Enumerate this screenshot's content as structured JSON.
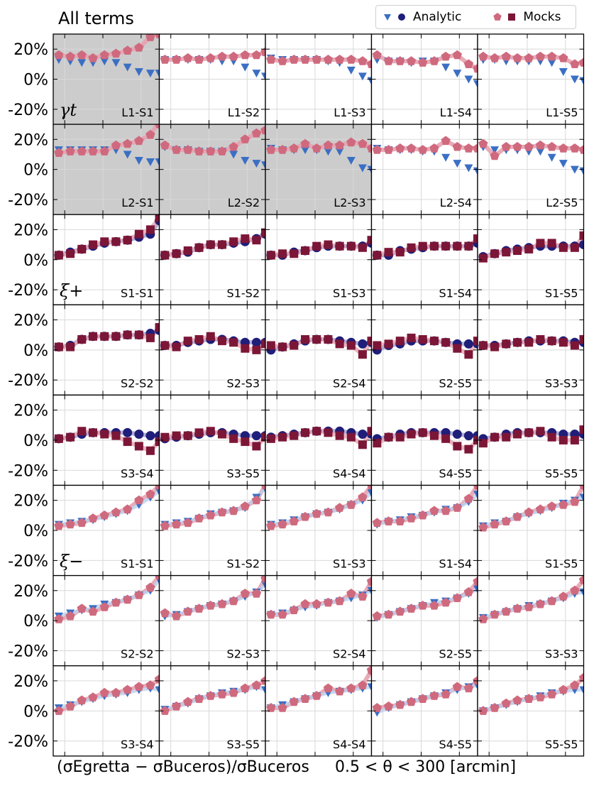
{
  "title": "All terms",
  "legend": {
    "analytic": "Analytic",
    "mocks": "Mocks"
  },
  "captions": {
    "left": "(σEgretta − σBuceros)/σBuceros",
    "right": "0.5 < θ < 300 [arcmin]"
  },
  "colors": {
    "analytic_tri": "#3a6fc4",
    "analytic_dot": "#1f1e7a",
    "mocks_pent": "#cf6a7e",
    "mocks_sq": "#7c1637",
    "band": "#e7a2b0",
    "shade": "#cccccc"
  },
  "row_labels": [
    "γt",
    "",
    "ξ+",
    "",
    "",
    "ξ−",
    "",
    ""
  ],
  "y_ticks": [
    "20%",
    "0%",
    "-20%"
  ],
  "chart_data": {
    "type": "scatter",
    "x": [
      0.7,
      1.4,
      2.8,
      5.5,
      11,
      22,
      44,
      88,
      175,
      300
    ],
    "xlabel": "0.5 < θ < 300 [arcmin]",
    "ylabel": "(σEgretta − σBuceros)/σBuceros",
    "ylim": [
      -30,
      30
    ],
    "panels": [
      {
        "label": "L1-S1",
        "kind": "ggl",
        "shaded": true,
        "analytic": [
          13,
          12,
          11,
          11,
          12,
          11,
          8,
          5,
          4,
          4
        ],
        "mocks": [
          16,
          15,
          16,
          14,
          16,
          17,
          19,
          21,
          28,
          32
        ]
      },
      {
        "label": "L1-S2",
        "kind": "ggl",
        "shaded": false,
        "analytic": [
          13,
          13,
          13,
          13,
          13,
          12,
          12,
          8,
          4,
          2
        ],
        "mocks": [
          13,
          13,
          14,
          13,
          14,
          15,
          15,
          16,
          16,
          18
        ]
      },
      {
        "label": "L1-S3",
        "kind": "ggl",
        "shaded": false,
        "analytic": [
          14,
          13,
          13,
          13,
          13,
          12,
          11,
          6,
          2,
          -1
        ],
        "mocks": [
          13,
          12,
          13,
          13,
          13,
          13,
          13,
          13,
          12,
          10
        ]
      },
      {
        "label": "L1-S4",
        "kind": "ggl",
        "shaded": false,
        "analytic": [
          13,
          12,
          12,
          11,
          12,
          12,
          8,
          4,
          0,
          -3
        ],
        "mocks": [
          16,
          12,
          12,
          12,
          11,
          12,
          15,
          16,
          10,
          7
        ]
      },
      {
        "label": "L1-S5",
        "kind": "ggl",
        "shaded": false,
        "analytic": [
          13,
          13,
          12,
          12,
          12,
          12,
          11,
          5,
          0,
          -1
        ],
        "mocks": [
          15,
          14,
          15,
          14,
          14,
          15,
          15,
          14,
          10,
          11
        ]
      },
      {
        "label": "L2-S1",
        "kind": "ggl",
        "shaded": true,
        "analytic": [
          13,
          13,
          13,
          13,
          13,
          13,
          10,
          6,
          5,
          5
        ],
        "mocks": [
          11,
          12,
          12,
          12,
          12,
          16,
          17,
          19,
          23,
          32
        ]
      },
      {
        "label": "L2-S2",
        "kind": "ggl",
        "shaded": true,
        "analytic": [
          15,
          13,
          13,
          12,
          12,
          12,
          10,
          6,
          4,
          3
        ],
        "mocks": [
          16,
          13,
          13,
          12,
          12,
          12,
          15,
          20,
          24,
          26
        ]
      },
      {
        "label": "L2-S3",
        "kind": "ggl",
        "shaded": true,
        "analytic": [
          14,
          13,
          13,
          13,
          13,
          12,
          12,
          6,
          1,
          0
        ],
        "mocks": [
          13,
          13,
          14,
          17,
          14,
          16,
          16,
          18,
          17,
          14
        ]
      },
      {
        "label": "L2-S4",
        "kind": "ggl",
        "shaded": false,
        "analytic": [
          14,
          13,
          13,
          13,
          12,
          12,
          8,
          4,
          1,
          -1
        ],
        "mocks": [
          13,
          13,
          14,
          14,
          13,
          14,
          19,
          15,
          14,
          14
        ]
      },
      {
        "label": "L2-S5",
        "kind": "ggl",
        "shaded": false,
        "analytic": [
          15,
          13,
          13,
          13,
          12,
          12,
          8,
          4,
          0,
          -1
        ],
        "mocks": [
          17,
          9,
          15,
          15,
          15,
          16,
          15,
          14,
          14,
          13
        ]
      },
      {
        "label": "S1-S1",
        "kind": "xip",
        "shaded": false,
        "analytic": [
          3,
          5,
          7,
          9,
          11,
          12,
          13,
          15,
          17,
          26
        ],
        "mocks": [
          3,
          4,
          7,
          10,
          12,
          12,
          13,
          17,
          20,
          28
        ]
      },
      {
        "label": "S1-S2",
        "kind": "xip",
        "shaded": false,
        "analytic": [
          3,
          4,
          5,
          8,
          10,
          10,
          11,
          12,
          14,
          17
        ],
        "mocks": [
          3,
          4,
          6,
          8,
          10,
          10,
          12,
          14,
          13,
          18
        ]
      },
      {
        "label": "S1-S3",
        "kind": "xip",
        "shaded": false,
        "analytic": [
          3,
          3,
          5,
          6,
          8,
          9,
          9,
          9,
          9,
          11
        ],
        "mocks": [
          3,
          4,
          4,
          6,
          9,
          10,
          9,
          9,
          8,
          13
        ]
      },
      {
        "label": "S1-S4",
        "kind": "xip",
        "shaded": false,
        "analytic": [
          3,
          3,
          6,
          7,
          8,
          9,
          9,
          9,
          9,
          11
        ],
        "mocks": [
          3,
          5,
          5,
          8,
          9,
          9,
          9,
          9,
          9,
          14
        ]
      },
      {
        "label": "S1-S5",
        "kind": "xip",
        "shaded": false,
        "analytic": [
          2,
          4,
          6,
          7,
          8,
          9,
          9,
          9,
          9,
          10
        ],
        "mocks": [
          1,
          4,
          5,
          6,
          7,
          11,
          11,
          8,
          8,
          16
        ]
      },
      {
        "label": "S2-S2",
        "kind": "xip",
        "shaded": false,
        "analytic": [
          2,
          3,
          7,
          9,
          9,
          9,
          10,
          10,
          11,
          13
        ],
        "mocks": [
          2,
          2,
          7,
          9,
          9,
          9,
          10,
          10,
          8,
          15
        ]
      },
      {
        "label": "S2-S3",
        "kind": "xip",
        "shaded": false,
        "analytic": [
          3,
          3,
          5,
          6,
          7,
          7,
          6,
          5,
          5,
          5
        ],
        "mocks": [
          3,
          2,
          6,
          7,
          9,
          6,
          5,
          1,
          0,
          4
        ]
      },
      {
        "label": "S2-S4",
        "kind": "xip",
        "shaded": false,
        "analytic": [
          0,
          2,
          4,
          6,
          7,
          7,
          6,
          5,
          4,
          5
        ],
        "mocks": [
          3,
          2,
          3,
          7,
          7,
          7,
          4,
          3,
          -3,
          6
        ]
      },
      {
        "label": "S2-S5",
        "kind": "xip",
        "shaded": false,
        "analytic": [
          0,
          3,
          4,
          6,
          6,
          6,
          5,
          4,
          4,
          4
        ],
        "mocks": [
          3,
          4,
          6,
          8,
          7,
          6,
          5,
          1,
          -3,
          6
        ]
      },
      {
        "label": "S3-S3",
        "kind": "xip",
        "shaded": false,
        "analytic": [
          3,
          3,
          4,
          5,
          6,
          6,
          6,
          6,
          5,
          5
        ],
        "mocks": [
          3,
          2,
          4,
          5,
          5,
          7,
          6,
          5,
          3,
          7
        ]
      },
      {
        "label": "S3-S4",
        "kind": "xip",
        "shaded": false,
        "analytic": [
          1,
          2,
          4,
          5,
          5,
          5,
          5,
          4,
          3,
          3
        ],
        "mocks": [
          1,
          2,
          6,
          5,
          4,
          3,
          -1,
          -4,
          -7,
          -1
        ]
      },
      {
        "label": "S3-S5",
        "kind": "xip",
        "shaded": false,
        "analytic": [
          1,
          2,
          3,
          4,
          5,
          5,
          4,
          3,
          3,
          3
        ],
        "mocks": [
          2,
          3,
          3,
          5,
          6,
          4,
          1,
          -1,
          -4,
          2
        ]
      },
      {
        "label": "S4-S4",
        "kind": "xip",
        "shaded": false,
        "analytic": [
          2,
          3,
          4,
          5,
          6,
          6,
          6,
          5,
          4,
          4
        ],
        "mocks": [
          1,
          2,
          3,
          5,
          6,
          5,
          3,
          2,
          -3,
          6
        ]
      },
      {
        "label": "S4-S5",
        "kind": "xip",
        "shaded": false,
        "analytic": [
          1,
          2,
          4,
          5,
          5,
          5,
          5,
          4,
          3,
          3
        ],
        "mocks": [
          -2,
          2,
          2,
          4,
          5,
          3,
          1,
          -4,
          -6,
          0
        ]
      },
      {
        "label": "S5-S5",
        "kind": "xip",
        "shaded": false,
        "analytic": [
          1,
          2,
          4,
          5,
          5,
          5,
          5,
          4,
          4,
          4
        ],
        "mocks": [
          -2,
          2,
          2,
          4,
          5,
          6,
          2,
          0,
          0,
          7
        ]
      },
      {
        "label": "S1-S1",
        "kind": "xim",
        "shaded": false,
        "analytic": [
          4,
          5,
          6,
          7,
          9,
          11,
          13,
          17,
          22,
          26
        ],
        "mocks": [
          3,
          4,
          5,
          8,
          10,
          12,
          14,
          20,
          24,
          30
        ]
      },
      {
        "label": "S1-S2",
        "kind": "xim",
        "shaded": false,
        "analytic": [
          4,
          5,
          6,
          8,
          11,
          12,
          13,
          15,
          22,
          28
        ],
        "mocks": [
          3,
          4,
          5,
          8,
          10,
          12,
          13,
          16,
          20,
          30
        ]
      },
      {
        "label": "S1-S3",
        "kind": "xim",
        "shaded": false,
        "analytic": [
          4,
          5,
          7,
          9,
          11,
          12,
          14,
          17,
          20,
          25
        ],
        "mocks": [
          3,
          4,
          6,
          9,
          11,
          12,
          15,
          17,
          22,
          30
        ]
      },
      {
        "label": "S1-S4",
        "kind": "xim",
        "shaded": false,
        "analytic": [
          4,
          6,
          7,
          9,
          10,
          12,
          14,
          15,
          19,
          24
        ],
        "mocks": [
          5,
          6,
          6,
          8,
          10,
          13,
          13,
          15,
          21,
          30
        ]
      },
      {
        "label": "S1-S5",
        "kind": "xim",
        "shaded": false,
        "analytic": [
          3,
          5,
          6,
          9,
          11,
          13,
          15,
          18,
          20,
          22
        ],
        "mocks": [
          2,
          4,
          6,
          9,
          12,
          14,
          16,
          17,
          19,
          30
        ]
      },
      {
        "label": "S2-S2",
        "kind": "xim",
        "shaded": false,
        "analytic": [
          3,
          5,
          7,
          8,
          11,
          12,
          14,
          17,
          20,
          27
        ],
        "mocks": [
          1,
          3,
          8,
          6,
          9,
          12,
          14,
          17,
          22,
          30
        ]
      },
      {
        "label": "S2-S3",
        "kind": "xim",
        "shaded": false,
        "analytic": [
          3,
          4,
          6,
          8,
          10,
          11,
          13,
          16,
          19,
          24
        ],
        "mocks": [
          5,
          3,
          6,
          8,
          10,
          11,
          13,
          18,
          18,
          28
        ]
      },
      {
        "label": "S2-S4",
        "kind": "xim",
        "shaded": false,
        "analytic": [
          4,
          5,
          7,
          9,
          10,
          12,
          13,
          15,
          17,
          20
        ],
        "mocks": [
          4,
          4,
          7,
          11,
          11,
          12,
          13,
          18,
          16,
          26
        ]
      },
      {
        "label": "S2-S5",
        "kind": "xim",
        "shaded": false,
        "analytic": [
          2,
          4,
          6,
          8,
          10,
          12,
          13,
          15,
          18,
          21
        ],
        "mocks": [
          3,
          4,
          6,
          8,
          10,
          10,
          12,
          15,
          19,
          26
        ]
      },
      {
        "label": "S3-S3",
        "kind": "xim",
        "shaded": false,
        "analytic": [
          2,
          4,
          6,
          8,
          10,
          11,
          13,
          15,
          18,
          19
        ],
        "mocks": [
          1,
          4,
          6,
          8,
          9,
          11,
          13,
          16,
          20,
          27
        ]
      },
      {
        "label": "S3-S4",
        "kind": "xim",
        "shaded": false,
        "analytic": [
          2,
          4,
          6,
          8,
          10,
          11,
          12,
          14,
          15,
          14
        ],
        "mocks": [
          0,
          3,
          7,
          9,
          12,
          12,
          14,
          16,
          17,
          21
        ]
      },
      {
        "label": "S3-S5",
        "kind": "xim",
        "shaded": false,
        "analytic": [
          1,
          3,
          5,
          8,
          10,
          12,
          13,
          14,
          16,
          14
        ],
        "mocks": [
          0,
          3,
          6,
          8,
          10,
          11,
          12,
          15,
          17,
          20
        ]
      },
      {
        "label": "S4-S4",
        "kind": "xim",
        "shaded": false,
        "analytic": [
          2,
          4,
          6,
          8,
          10,
          12,
          13,
          14,
          15,
          16
        ],
        "mocks": [
          2,
          2,
          6,
          8,
          10,
          15,
          13,
          15,
          17,
          27
        ]
      },
      {
        "label": "S4-S5",
        "kind": "xim",
        "shaded": false,
        "analytic": [
          -1,
          2,
          4,
          6,
          8,
          10,
          12,
          14,
          16,
          17
        ],
        "mocks": [
          2,
          3,
          4,
          6,
          8,
          10,
          11,
          16,
          15,
          20
        ]
      },
      {
        "label": "S5-S5",
        "kind": "xim",
        "shaded": false,
        "analytic": [
          0,
          2,
          4,
          6,
          8,
          10,
          12,
          13,
          14,
          14
        ],
        "mocks": [
          0,
          2,
          5,
          7,
          8,
          9,
          11,
          14,
          17,
          22
        ]
      }
    ]
  }
}
